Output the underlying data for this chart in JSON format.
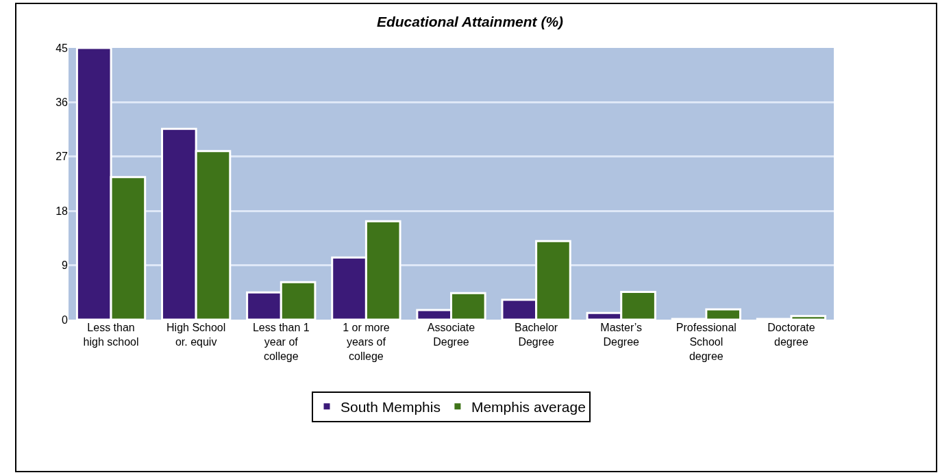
{
  "chart_data": {
    "type": "bar",
    "title": "Educational Attainment (%)",
    "categories": [
      "Less than high school",
      "High School or. equiv",
      "Less than 1 year of college",
      "1 or more years of college",
      "Associate Degree",
      "Bachelor Degree",
      "Master’s Degree",
      "Professional School degree",
      "Doctorate degree"
    ],
    "series": [
      {
        "name": "South Memphis",
        "color": "#3b1a78",
        "values": [
          45,
          31.6,
          4.5,
          10.3,
          1.6,
          3.3,
          1.1,
          0.1,
          0.1
        ]
      },
      {
        "name": "Memphis average",
        "color": "#3f7419",
        "values": [
          23.6,
          27.9,
          6.2,
          16.3,
          4.4,
          13.0,
          4.6,
          1.7,
          0.6
        ]
      }
    ],
    "ylim": [
      0,
      45
    ],
    "yticks": [
      0,
      9,
      18,
      27,
      36,
      45
    ],
    "grid": "y",
    "legend": "bottom"
  }
}
